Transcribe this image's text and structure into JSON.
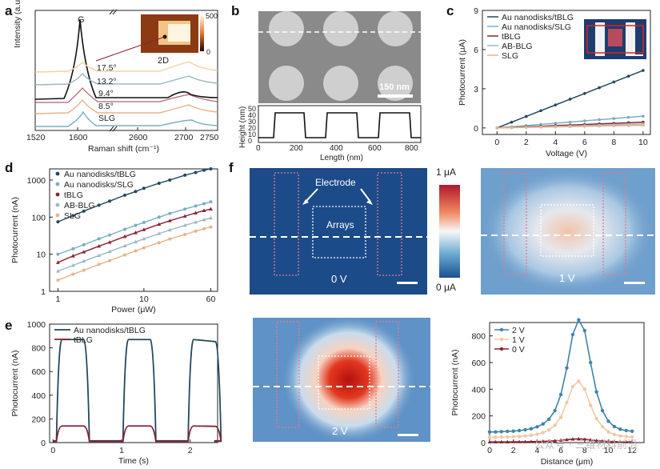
{
  "panel_labels": {
    "a": "a",
    "b": "b",
    "c": "c",
    "d": "d",
    "e": "e",
    "f": "f"
  },
  "colors": {
    "au_tblg": "#24475c",
    "au_slg": "#7aaec2",
    "tblg": "#8a2232",
    "ab_blg": "#9cb8c4",
    "slg": "#e6b48a",
    "map_dark": "#1c4b8a",
    "map_mid": "#8bb6d8",
    "map_hot": "#b81618",
    "electrode": "#e07a8e"
  },
  "panel_a": {
    "ylabel": "Intensity (a.u.)",
    "xlabel": "Raman shift (cm⁻¹)",
    "xticks": [
      "1520",
      "1600",
      "2600",
      "2700",
      "2750"
    ],
    "peak_g": "G",
    "peak_2d": "2D",
    "angles": [
      "17.5°",
      "13.2°",
      "9.4°",
      "8.5°",
      "SLG"
    ],
    "colorbar": [
      "500",
      "0"
    ]
  },
  "panel_b": {
    "scalebar": "150 nm",
    "ylabel": "Height (nm)",
    "xlabel": "Length (nm)",
    "yticks": [
      "50",
      "40",
      "30",
      "20",
      "10",
      "0"
    ],
    "xticks": [
      "0",
      "200",
      "400",
      "600",
      "800"
    ]
  },
  "chart_data": [
    {
      "type": "line",
      "panel": "c",
      "xlabel": "Voltage (V)",
      "ylabel": "Photocurrent (μA)",
      "xlim": [
        -1,
        10.5
      ],
      "ylim": [
        -0.5,
        9
      ],
      "x": [
        0,
        1,
        2,
        3,
        4,
        5,
        6,
        7,
        8,
        9,
        10
      ],
      "series": [
        {
          "name": "Au nanodisks/tBLG",
          "values": [
            0,
            0.44,
            0.88,
            1.32,
            1.76,
            2.2,
            2.64,
            3.08,
            3.52,
            3.96,
            4.4
          ]
        },
        {
          "name": "Au nanodisks/SLG",
          "values": [
            0,
            0.09,
            0.18,
            0.27,
            0.36,
            0.45,
            0.54,
            0.63,
            0.72,
            0.81,
            0.9
          ]
        },
        {
          "name": "tBLG",
          "values": [
            0,
            0.04,
            0.09,
            0.13,
            0.18,
            0.22,
            0.26,
            0.31,
            0.35,
            0.4,
            0.44
          ]
        },
        {
          "name": "AB-BLG",
          "values": [
            0,
            0.03,
            0.06,
            0.09,
            0.12,
            0.15,
            0.18,
            0.21,
            0.24,
            0.27,
            0.3
          ]
        },
        {
          "name": "SLG",
          "values": [
            0,
            0.02,
            0.04,
            0.06,
            0.08,
            0.1,
            0.12,
            0.14,
            0.16,
            0.18,
            0.2
          ]
        }
      ],
      "xticks": [
        "0",
        "2",
        "4",
        "6",
        "8",
        "10"
      ],
      "yticks": [
        "0",
        "3",
        "6",
        "9"
      ]
    },
    {
      "type": "scatter",
      "panel": "d",
      "scale": "log-log",
      "xlabel": "Power (μW)",
      "ylabel": "Photocurrent (nA)",
      "xlim": [
        1,
        60
      ],
      "ylim": [
        1,
        2000
      ],
      "x": [
        1,
        1.5,
        2,
        3,
        4,
        6,
        8,
        10,
        15,
        20,
        30,
        40,
        50,
        60
      ],
      "series": [
        {
          "name": "Au nanodisks/tBLG",
          "values": [
            75,
            110,
            145,
            210,
            270,
            390,
            490,
            600,
            820,
            1000,
            1350,
            1600,
            1850,
            2000
          ]
        },
        {
          "name": "Au nanodisks/SLG",
          "values": [
            10,
            14,
            18,
            26,
            33,
            47,
            60,
            72,
            100,
            125,
            165,
            200,
            230,
            260
          ]
        },
        {
          "name": "tBLG",
          "values": [
            6,
            9,
            11.5,
            16.5,
            21,
            30,
            38,
            46,
            64,
            80,
            106,
            130,
            150,
            165
          ]
        },
        {
          "name": "AB-BLG",
          "values": [
            3.5,
            5,
            6.5,
            9.2,
            11.8,
            16.8,
            21.5,
            26,
            36,
            45,
            60,
            73,
            85,
            95
          ]
        },
        {
          "name": "SLG",
          "values": [
            2,
            2.9,
            3.7,
            5.3,
            6.7,
            9.6,
            12.3,
            14.8,
            20.5,
            25.7,
            34,
            42,
            48.5,
            54
          ]
        }
      ],
      "xticks": [
        "1",
        "10",
        "60"
      ],
      "yticks": [
        "1",
        "10",
        "100",
        "1000"
      ]
    },
    {
      "type": "line",
      "panel": "e",
      "xlabel": "Time (s)",
      "ylabel": "Photocurrent (nA)",
      "xlim": [
        -0.05,
        2.4
      ],
      "ylim": [
        0,
        1000
      ],
      "series": [
        {
          "name": "Au nanodisks/tBLG",
          "on_level": 870,
          "off_level": 15
        },
        {
          "name": "tBLG",
          "on_level": 140,
          "off_level": 10
        }
      ],
      "xticks": [
        "0",
        "1",
        "2"
      ],
      "yticks": [
        "0",
        "200",
        "400",
        "600",
        "800",
        "1000"
      ]
    },
    {
      "type": "line",
      "panel": "f-profile",
      "xlabel": "Distance (μm)",
      "ylabel": "Photocurrent (nA)",
      "xlim": [
        0,
        13
      ],
      "ylim": [
        0,
        900
      ],
      "x": [
        0,
        0.5,
        1,
        1.5,
        2,
        2.5,
        3,
        3.5,
        4,
        4.5,
        5,
        5.5,
        6,
        6.5,
        7,
        7.5,
        8,
        8.5,
        9,
        9.5,
        10,
        10.5,
        11,
        11.5,
        12
      ],
      "series": [
        {
          "name": "2 V",
          "values": [
            80,
            80,
            82,
            84,
            86,
            90,
            96,
            104,
            118,
            140,
            175,
            240,
            360,
            560,
            810,
            920,
            840,
            600,
            380,
            240,
            160,
            120,
            100,
            90,
            85
          ]
        },
        {
          "name": "1 V",
          "values": [
            40,
            40,
            41,
            42,
            44,
            46,
            50,
            55,
            62,
            75,
            95,
            130,
            190,
            300,
            420,
            460,
            400,
            280,
            180,
            120,
            80,
            60,
            50,
            45,
            42
          ]
        },
        {
          "name": "0 V",
          "values": [
            5,
            5,
            5,
            5,
            6,
            6,
            6,
            7,
            8,
            9,
            11,
            14,
            18,
            22,
            26,
            28,
            25,
            20,
            15,
            11,
            8,
            7,
            6,
            5,
            5
          ]
        }
      ],
      "xticks": [
        "0",
        "2",
        "4",
        "6",
        "8",
        "10",
        "12"
      ],
      "yticks": [
        "0",
        "200",
        "400",
        "600",
        "800"
      ]
    }
  ],
  "panel_f": {
    "electrode": "Electrode",
    "arrays": "Arrays",
    "v0": "0 V",
    "v1": "1 V",
    "v2": "2 V",
    "colorbar_top": "1 μA",
    "colorbar_bottom": "0 μA"
  },
  "watermark": "公众号 · 三维材料前沿"
}
